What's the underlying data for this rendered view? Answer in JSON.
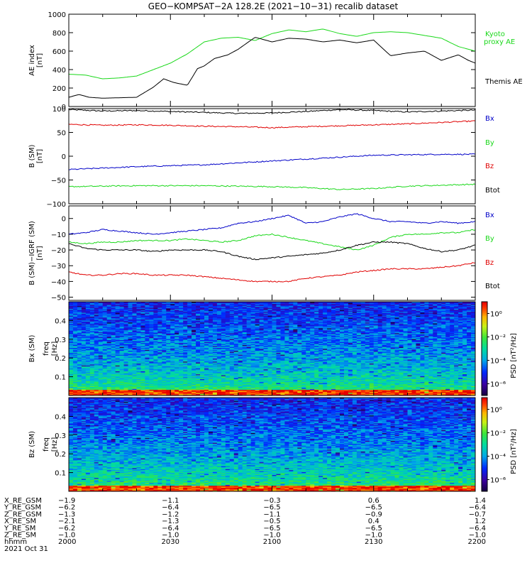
{
  "title": "GEO−KOMPSAT−2A 128.2E (2021−10−31) recalib dataset",
  "colors": {
    "black": "#000000",
    "red": "#e00000",
    "green": "#1ad81a",
    "blue": "#0000c8"
  },
  "chart_data": [
    {
      "type": "line",
      "ylabel": "AE index",
      "yunit": "[nT]",
      "ylim": [
        0,
        1000
      ],
      "yticks": [
        "0",
        "200",
        "400",
        "600",
        "800",
        "1000"
      ],
      "ytick_values": [
        0,
        200,
        400,
        600,
        800,
        1000
      ],
      "xlim": [
        0,
        120
      ],
      "series": [
        {
          "name": "Kyoto proxy AE",
          "color": "#1ad81a",
          "x": [
            0,
            5,
            10,
            15,
            20,
            25,
            30,
            35,
            40,
            45,
            50,
            55,
            60,
            65,
            70,
            75,
            80,
            85,
            90,
            95,
            100,
            105,
            110,
            115,
            120
          ],
          "y": [
            350,
            340,
            300,
            310,
            330,
            400,
            470,
            570,
            700,
            740,
            750,
            715,
            790,
            830,
            810,
            840,
            790,
            760,
            800,
            810,
            800,
            770,
            740,
            650,
            600
          ]
        },
        {
          "name": "Themis AE",
          "color": "#000000",
          "x": [
            0,
            3,
            6,
            10,
            15,
            20,
            25,
            28,
            31,
            35,
            38,
            40,
            43,
            47,
            50,
            55,
            60,
            65,
            70,
            75,
            80,
            85,
            90,
            95,
            100,
            105,
            110,
            115,
            118,
            120
          ],
          "y": [
            100,
            130,
            100,
            90,
            95,
            100,
            210,
            300,
            260,
            230,
            410,
            440,
            520,
            560,
            620,
            750,
            700,
            740,
            730,
            700,
            720,
            690,
            720,
            550,
            580,
            600,
            500,
            560,
            500,
            470
          ]
        }
      ]
    },
    {
      "type": "line",
      "ylabel": "B (SM)",
      "yunit": "[nT]",
      "ylim": [
        -100,
        100
      ],
      "yticks": [
        "−100",
        "−50",
        "0",
        "50",
        "100"
      ],
      "ytick_values": [
        -100,
        -50,
        0,
        50,
        100
      ],
      "xlim": [
        0,
        120
      ],
      "legend": [
        {
          "name": "Bx",
          "color": "#0000c8"
        },
        {
          "name": "By",
          "color": "#1ad81a"
        },
        {
          "name": "Bz",
          "color": "#e00000"
        },
        {
          "name": "Btot",
          "color": "#000000"
        }
      ],
      "series": [
        {
          "name": "Btot",
          "color": "#000000",
          "x": [
            0,
            10,
            20,
            30,
            40,
            50,
            60,
            70,
            80,
            90,
            100,
            110,
            120
          ],
          "y": [
            98,
            95,
            96,
            94,
            92,
            90,
            91,
            94,
            98,
            96,
            93,
            95,
            97
          ]
        },
        {
          "name": "Bz",
          "color": "#e00000",
          "x": [
            0,
            10,
            20,
            30,
            40,
            50,
            60,
            70,
            80,
            90,
            100,
            110,
            120
          ],
          "y": [
            67,
            65,
            66,
            65,
            63,
            62,
            60,
            62,
            64,
            66,
            68,
            71,
            74
          ]
        },
        {
          "name": "Bx",
          "color": "#0000c8",
          "x": [
            0,
            10,
            20,
            30,
            40,
            50,
            60,
            70,
            80,
            90,
            100,
            110,
            120
          ],
          "y": [
            -28,
            -25,
            -22,
            -20,
            -18,
            -14,
            -10,
            -6,
            -2,
            2,
            3,
            4,
            4
          ]
        },
        {
          "name": "By",
          "color": "#1ad81a",
          "x": [
            0,
            10,
            20,
            30,
            40,
            50,
            60,
            70,
            80,
            90,
            100,
            110,
            120
          ],
          "y": [
            -64,
            -63,
            -62,
            -62,
            -62,
            -63,
            -64,
            -66,
            -70,
            -68,
            -63,
            -61,
            -59
          ]
        }
      ]
    },
    {
      "type": "line",
      "ylabel": "B (SM)−IGRF (SM)",
      "yunit": "[nT]",
      "ylim": [
        -52,
        8
      ],
      "yticks": [
        "−50",
        "−40",
        "−30",
        "−20",
        "−10",
        "0"
      ],
      "ytick_values": [
        -50,
        -40,
        -30,
        -20,
        -10,
        0
      ],
      "xlim": [
        0,
        120
      ],
      "legend": [
        {
          "name": "Bx",
          "color": "#0000c8"
        },
        {
          "name": "By",
          "color": "#1ad81a"
        },
        {
          "name": "Bz",
          "color": "#e00000"
        },
        {
          "name": "Btot",
          "color": "#000000"
        }
      ],
      "series": [
        {
          "name": "Bx",
          "color": "#0000c8",
          "x": [
            0,
            5,
            10,
            15,
            20,
            25,
            30,
            35,
            40,
            45,
            50,
            55,
            60,
            65,
            70,
            75,
            80,
            85,
            90,
            95,
            100,
            105,
            110,
            115,
            120
          ],
          "y": [
            -10,
            -9,
            -7,
            -8,
            -9,
            -10,
            -9,
            -8,
            -7,
            -6,
            -3,
            -2,
            0,
            2,
            -3,
            -2,
            1,
            3,
            0,
            -2,
            -2,
            -3,
            -2,
            -3,
            -2
          ]
        },
        {
          "name": "By",
          "color": "#1ad81a",
          "x": [
            0,
            5,
            10,
            15,
            20,
            25,
            30,
            35,
            40,
            45,
            50,
            55,
            60,
            65,
            70,
            75,
            80,
            85,
            90,
            95,
            100,
            105,
            110,
            115,
            120
          ],
          "y": [
            -15,
            -16,
            -15,
            -15,
            -14,
            -14,
            -14,
            -13,
            -14,
            -15,
            -14,
            -11,
            -10,
            -12,
            -14,
            -16,
            -18,
            -20,
            -17,
            -12,
            -10,
            -10,
            -9,
            -9,
            -7
          ]
        },
        {
          "name": "Btot",
          "color": "#000000",
          "x": [
            0,
            5,
            10,
            15,
            20,
            25,
            30,
            35,
            40,
            45,
            50,
            55,
            60,
            65,
            70,
            75,
            80,
            85,
            90,
            95,
            100,
            105,
            110,
            115,
            120
          ],
          "y": [
            -16,
            -19,
            -20,
            -20,
            -20,
            -21,
            -20,
            -20,
            -20,
            -21,
            -24,
            -26,
            -25,
            -24,
            -23,
            -22,
            -20,
            -17,
            -15,
            -15,
            -16,
            -19,
            -21,
            -20,
            -17
          ]
        },
        {
          "name": "Bz",
          "color": "#e00000",
          "x": [
            0,
            5,
            10,
            15,
            20,
            25,
            30,
            35,
            40,
            45,
            50,
            55,
            60,
            65,
            70,
            75,
            80,
            85,
            90,
            95,
            100,
            105,
            110,
            115,
            120
          ],
          "y": [
            -34,
            -36,
            -36,
            -35,
            -35,
            -36,
            -36,
            -36,
            -37,
            -38,
            -39,
            -40,
            -40,
            -40,
            -38,
            -37,
            -36,
            -34,
            -33,
            -32,
            -32,
            -32,
            -31,
            -30,
            -28
          ]
        }
      ]
    },
    {
      "type": "heatmap",
      "ylabel": "Bx (SM)",
      "freq_label": "freq",
      "yunit": "[Hz]",
      "ylim": [
        0.0,
        0.5
      ],
      "yticks": [
        "0.1",
        "0.2",
        "0.3",
        "0.4"
      ],
      "ytick_values": [
        0.1,
        0.2,
        0.3,
        0.4
      ],
      "xlim": [
        0,
        120
      ],
      "colorbar_label": "PSD",
      "colorbar_unit": "[nT²/Hz]",
      "colorbar_ticks": [
        "10⁰",
        "10⁻²",
        "10⁻⁴",
        "10⁻⁶"
      ],
      "colorbar_tick_values": [
        0,
        -2,
        -4,
        -6
      ],
      "clim_log10": [
        -7,
        1
      ]
    },
    {
      "type": "heatmap",
      "ylabel": "Bz (SM)",
      "freq_label": "freq",
      "yunit": "[Hz]",
      "ylim": [
        0.0,
        0.5
      ],
      "yticks": [
        "0.1",
        "0.2",
        "0.3",
        "0.4"
      ],
      "ytick_values": [
        0.1,
        0.2,
        0.3,
        0.4
      ],
      "xlim": [
        0,
        120
      ],
      "colorbar_label": "PSD",
      "colorbar_unit": "[nT²/Hz]",
      "colorbar_ticks": [
        "10⁰",
        "10⁻²",
        "10⁻⁴",
        "10⁻⁶"
      ],
      "colorbar_tick_values": [
        0,
        -2,
        -4,
        -6
      ],
      "clim_log10": [
        -7,
        1
      ]
    }
  ],
  "ephemeris": {
    "rows": [
      {
        "label": "X_RE_GSM",
        "values": [
          "−1.9",
          "−1.1",
          "−0.3",
          "0.6",
          "1.4"
        ]
      },
      {
        "label": "Y_RE_GSM",
        "values": [
          "−6.2",
          "−6.4",
          "−6.5",
          "−6.5",
          "−6.4"
        ]
      },
      {
        "label": "Z_RE_GSM",
        "values": [
          "−1.3",
          "−1.2",
          "−1.1",
          "−0.9",
          "−0.7"
        ]
      },
      {
        "label": "X_RE_SM",
        "values": [
          "−2.1",
          "−1.3",
          "−0.5",
          "0.4",
          "1.2"
        ]
      },
      {
        "label": "Y_RE_SM",
        "values": [
          "−6.2",
          "−6.4",
          "−6.5",
          "−6.5",
          "−6.4"
        ]
      },
      {
        "label": "Z_RE_SM",
        "values": [
          "−1.0",
          "−1.0",
          "−1.0",
          "−1.0",
          "−1.0"
        ]
      },
      {
        "label": "hhmm",
        "values": [
          "2000",
          "2030",
          "2100",
          "2130",
          "2200"
        ]
      }
    ],
    "tick_x": [
      0,
      30,
      60,
      90,
      120
    ],
    "date": "2021 Oct 31"
  }
}
